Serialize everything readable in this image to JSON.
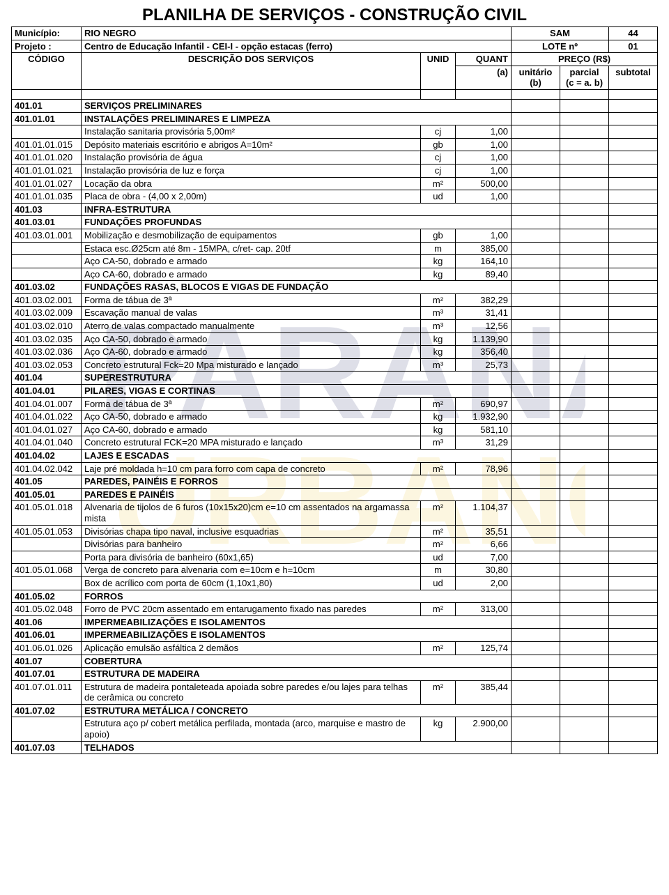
{
  "title": "PLANILHA DE SERVIÇOS - CONSTRUÇÃO CIVIL",
  "header": {
    "municipio_label": "Município:",
    "municipio": "RIO NEGRO",
    "sam_label": "SAM",
    "sam": "44",
    "projeto_label": "Projeto :",
    "projeto": "Centro de Educação Infantil - CEI-I - opção estacas (ferro)",
    "lote_label": "LOTE nº",
    "lote": "01",
    "codigo": "CÓDIGO",
    "descricao": "DESCRIÇÃO DOS SERVIÇOS",
    "unid": "UNID",
    "quant": "QUANT",
    "quant2": "(a)",
    "preco": "PREÇO (R$)",
    "unit": "unitário",
    "unit2": "(b)",
    "par": "parcial",
    "par2": "(c = a. b)",
    "sub": "subtotal"
  },
  "rows": [
    {
      "c": "401.01",
      "d": "SERVIÇOS PRELIMINARES",
      "bold": true
    },
    {
      "c": "401.01.01",
      "d": "INSTALAÇÕES PRELIMINARES E LIMPEZA",
      "bold": true
    },
    {
      "c": "",
      "d": "Instalação sanitaria provisória 5,00m²",
      "u": "cj",
      "q": "1,00"
    },
    {
      "c": "401.01.01.015",
      "d": "Depósito materiais escritório e abrigos A=10m²",
      "u": "gb",
      "q": "1,00"
    },
    {
      "c": "401.01.01.020",
      "d": "Instalação provisória de água",
      "u": "cj",
      "q": "1,00"
    },
    {
      "c": "401.01.01.021",
      "d": "Instalação provisória de luz e força",
      "u": "cj",
      "q": "1,00"
    },
    {
      "c": "401.01.01.027",
      "d": "Locação da obra",
      "u": "m²",
      "q": "500,00"
    },
    {
      "c": "401.01.01.035",
      "d": "Placa de obra - (4,00 x 2,00m)",
      "u": "ud",
      "q": "1,00"
    },
    {
      "c": "401.03",
      "d": "INFRA-ESTRUTURA",
      "bold": true
    },
    {
      "c": "401.03.01",
      "d": "FUNDAÇÕES PROFUNDAS",
      "bold": true
    },
    {
      "c": "401.03.01.001",
      "d": "Mobilização e desmobilização de equipamentos",
      "u": "gb",
      "q": "1,00"
    },
    {
      "c": "",
      "d": "Estaca esc.Ø25cm até  8m - 15MPA, c/ret- cap. 20tf",
      "u": "m",
      "q": "385,00"
    },
    {
      "c": "",
      "d": "Aço CA-50, dobrado e armado",
      "u": "kg",
      "q": "164,10"
    },
    {
      "c": "",
      "d": "Aço CA-60, dobrado e armado",
      "u": "kg",
      "q": "89,40"
    },
    {
      "c": "401.03.02",
      "d": "FUNDAÇÕES RASAS, BLOCOS E VIGAS DE FUNDAÇÃO",
      "bold": true
    },
    {
      "c": "401.03.02.001",
      "d": "Forma de tábua de 3ª",
      "u": "m²",
      "q": "382,29"
    },
    {
      "c": "401.03.02.009",
      "d": "Escavação manual de valas",
      "u": "m³",
      "q": "31,41"
    },
    {
      "c": "401.03.02.010",
      "d": "Aterro de valas compactado manualmente",
      "u": "m³",
      "q": "12,56"
    },
    {
      "c": "401.03.02.035",
      "d": "Aço CA-50, dobrado e armado",
      "u": "kg",
      "q": "1.139,90"
    },
    {
      "c": "401.03.02.036",
      "d": "Aço CA-60, dobrado e armado",
      "u": "kg",
      "q": "356,40"
    },
    {
      "c": "401.03.02.053",
      "d": "Concreto estrutural Fck=20 Mpa misturado e lançado",
      "u": "m³",
      "q": "25,73"
    },
    {
      "c": "401.04",
      "d": "SUPERESTRUTURA",
      "bold": true
    },
    {
      "c": "401.04.01",
      "d": "PILARES, VIGAS E CORTINAS",
      "bold": true
    },
    {
      "c": "401.04.01.007",
      "d": "Forma de tábua de 3ª",
      "u": "m²",
      "q": "690,97"
    },
    {
      "c": "401.04.01.022",
      "d": "Aço CA-50, dobrado e armado",
      "u": "kg",
      "q": "1.932,90"
    },
    {
      "c": "401.04.01.027",
      "d": "Aço CA-60, dobrado e armado",
      "u": "kg",
      "q": "581,10"
    },
    {
      "c": "401.04.01.040",
      "d": "Concreto estrutural FCK=20 MPA misturado e lançado",
      "u": "m³",
      "q": "31,29"
    },
    {
      "c": "401.04.02",
      "d": "LAJES E ESCADAS",
      "bold": true
    },
    {
      "c": "401.04.02.042",
      "d": "Laje pré moldada h=10 cm para forro com capa de concreto",
      "u": "m²",
      "q": "78,96"
    },
    {
      "c": "401.05",
      "d": "PAREDES, PAINÉIS E FORROS",
      "bold": true
    },
    {
      "c": "401.05.01",
      "d": "PAREDES E PAINÉIS",
      "bold": true
    },
    {
      "c": "401.05.01.018",
      "d": "Alvenaria de tijolos de 6 furos (10x15x20)cm e=10 cm assentados na argamassa mista",
      "u": "m²",
      "q": "1.104,37"
    },
    {
      "c": "401.05.01.053",
      "d": "Divisórias chapa tipo naval, inclusive esquadrias",
      "u": "m²",
      "q": "35,51"
    },
    {
      "c": "",
      "d": "Divisórias para banheiro",
      "u": "m²",
      "q": "6,66"
    },
    {
      "c": "",
      "d": "Porta para divisória de banheiro (60x1,65)",
      "u": "ud",
      "q": "7,00"
    },
    {
      "c": "401.05.01.068",
      "d": "Verga de concreto para alvenaria com e=10cm e h=10cm",
      "u": "m",
      "q": "30,80"
    },
    {
      "c": "",
      "d": "Box de acrílico com porta de 60cm (1,10x1,80)",
      "u": "ud",
      "q": "2,00"
    },
    {
      "c": "401.05.02",
      "d": "FORROS",
      "bold": true
    },
    {
      "c": "401.05.02.048",
      "d": "Forro de PVC 20cm assentado em entarugamento fixado nas paredes",
      "u": "m²",
      "q": "313,00"
    },
    {
      "c": "401.06",
      "d": "IMPERMEABILIZAÇÕES E ISOLAMENTOS",
      "bold": true
    },
    {
      "c": "401.06.01",
      "d": "IMPERMEABILIZAÇÕES E ISOLAMENTOS",
      "bold": true
    },
    {
      "c": "401.06.01.026",
      "d": "Aplicação emulsão asfáltica 2 demãos",
      "u": "m²",
      "q": "125,74"
    },
    {
      "c": "401.07",
      "d": "COBERTURA",
      "bold": true
    },
    {
      "c": "401.07.01",
      "d": "ESTRUTURA DE MADEIRA",
      "bold": true
    },
    {
      "c": "401.07.01.011",
      "d": "Estrutura de madeira pontaleteada apoiada sobre paredes e/ou lajes para telhas de cerâmica ou concreto",
      "u": "m²",
      "q": "385,44"
    },
    {
      "c": "401.07.02",
      "d": "ESTRUTURA METÁLICA / CONCRETO",
      "bold": true
    },
    {
      "c": "",
      "d": "Estrutura aço p/ cobert metálica perfilada, montada (arco, marquise e mastro de apoio)",
      "u": "kg",
      "q": "2.900,00"
    },
    {
      "c": "401.07.03",
      "d": "TELHADOS",
      "bold": true
    }
  ]
}
